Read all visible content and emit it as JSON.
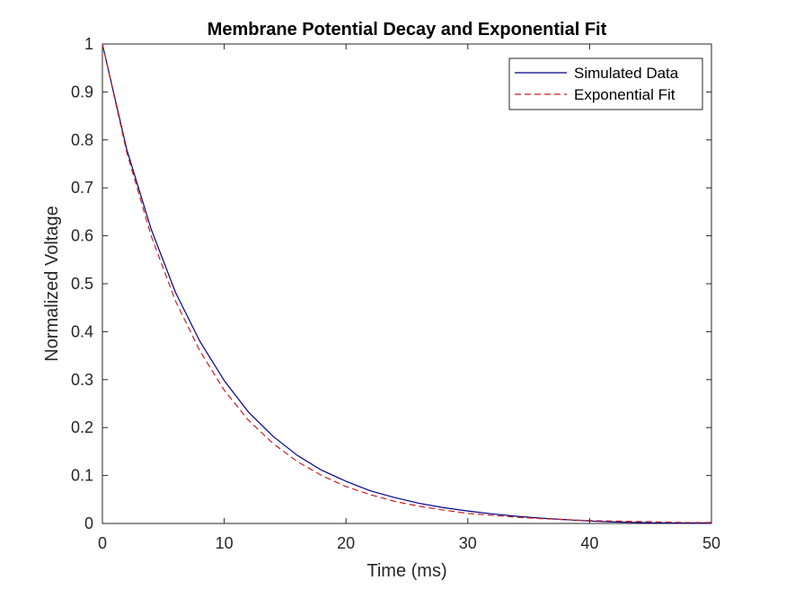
{
  "chart_data": {
    "type": "line",
    "title": "Membrane Potential Decay and Exponential Fit",
    "xlabel": "Time (ms)",
    "ylabel": "Normalized Voltage",
    "xlim": [
      0,
      50
    ],
    "ylim": [
      0,
      1
    ],
    "x_ticks": [
      0,
      10,
      20,
      30,
      40,
      50
    ],
    "y_ticks": [
      0,
      0.1,
      0.2,
      0.3,
      0.4,
      0.5,
      0.6,
      0.7,
      0.8,
      0.9,
      1
    ],
    "grid": false,
    "legend_position": "top-right",
    "x": [
      0,
      2,
      4,
      6,
      8,
      10,
      12,
      14,
      16,
      18,
      20,
      22,
      24,
      26,
      28,
      30,
      32,
      34,
      36,
      38,
      40,
      42,
      44,
      46,
      48,
      50
    ],
    "series": [
      {
        "name": "Simulated Data",
        "color": "#00008b",
        "style": "solid",
        "values": [
          1.0,
          0.78,
          0.614,
          0.482,
          0.38,
          0.298,
          0.232,
          0.182,
          0.142,
          0.111,
          0.088,
          0.068,
          0.054,
          0.042,
          0.033,
          0.026,
          0.02,
          0.015,
          0.011,
          0.008,
          0.005,
          0.003,
          0.002,
          0.001,
          0.001,
          0.001
        ]
      },
      {
        "name": "Exponential Fit",
        "color": "#cc1f1f",
        "style": "dashed",
        "values": [
          1.0,
          0.774,
          0.6,
          0.464,
          0.36,
          0.278,
          0.215,
          0.167,
          0.129,
          0.1,
          0.077,
          0.06,
          0.046,
          0.036,
          0.028,
          0.021,
          0.017,
          0.013,
          0.01,
          0.008,
          0.006,
          0.005,
          0.004,
          0.003,
          0.002,
          0.002
        ]
      }
    ]
  }
}
